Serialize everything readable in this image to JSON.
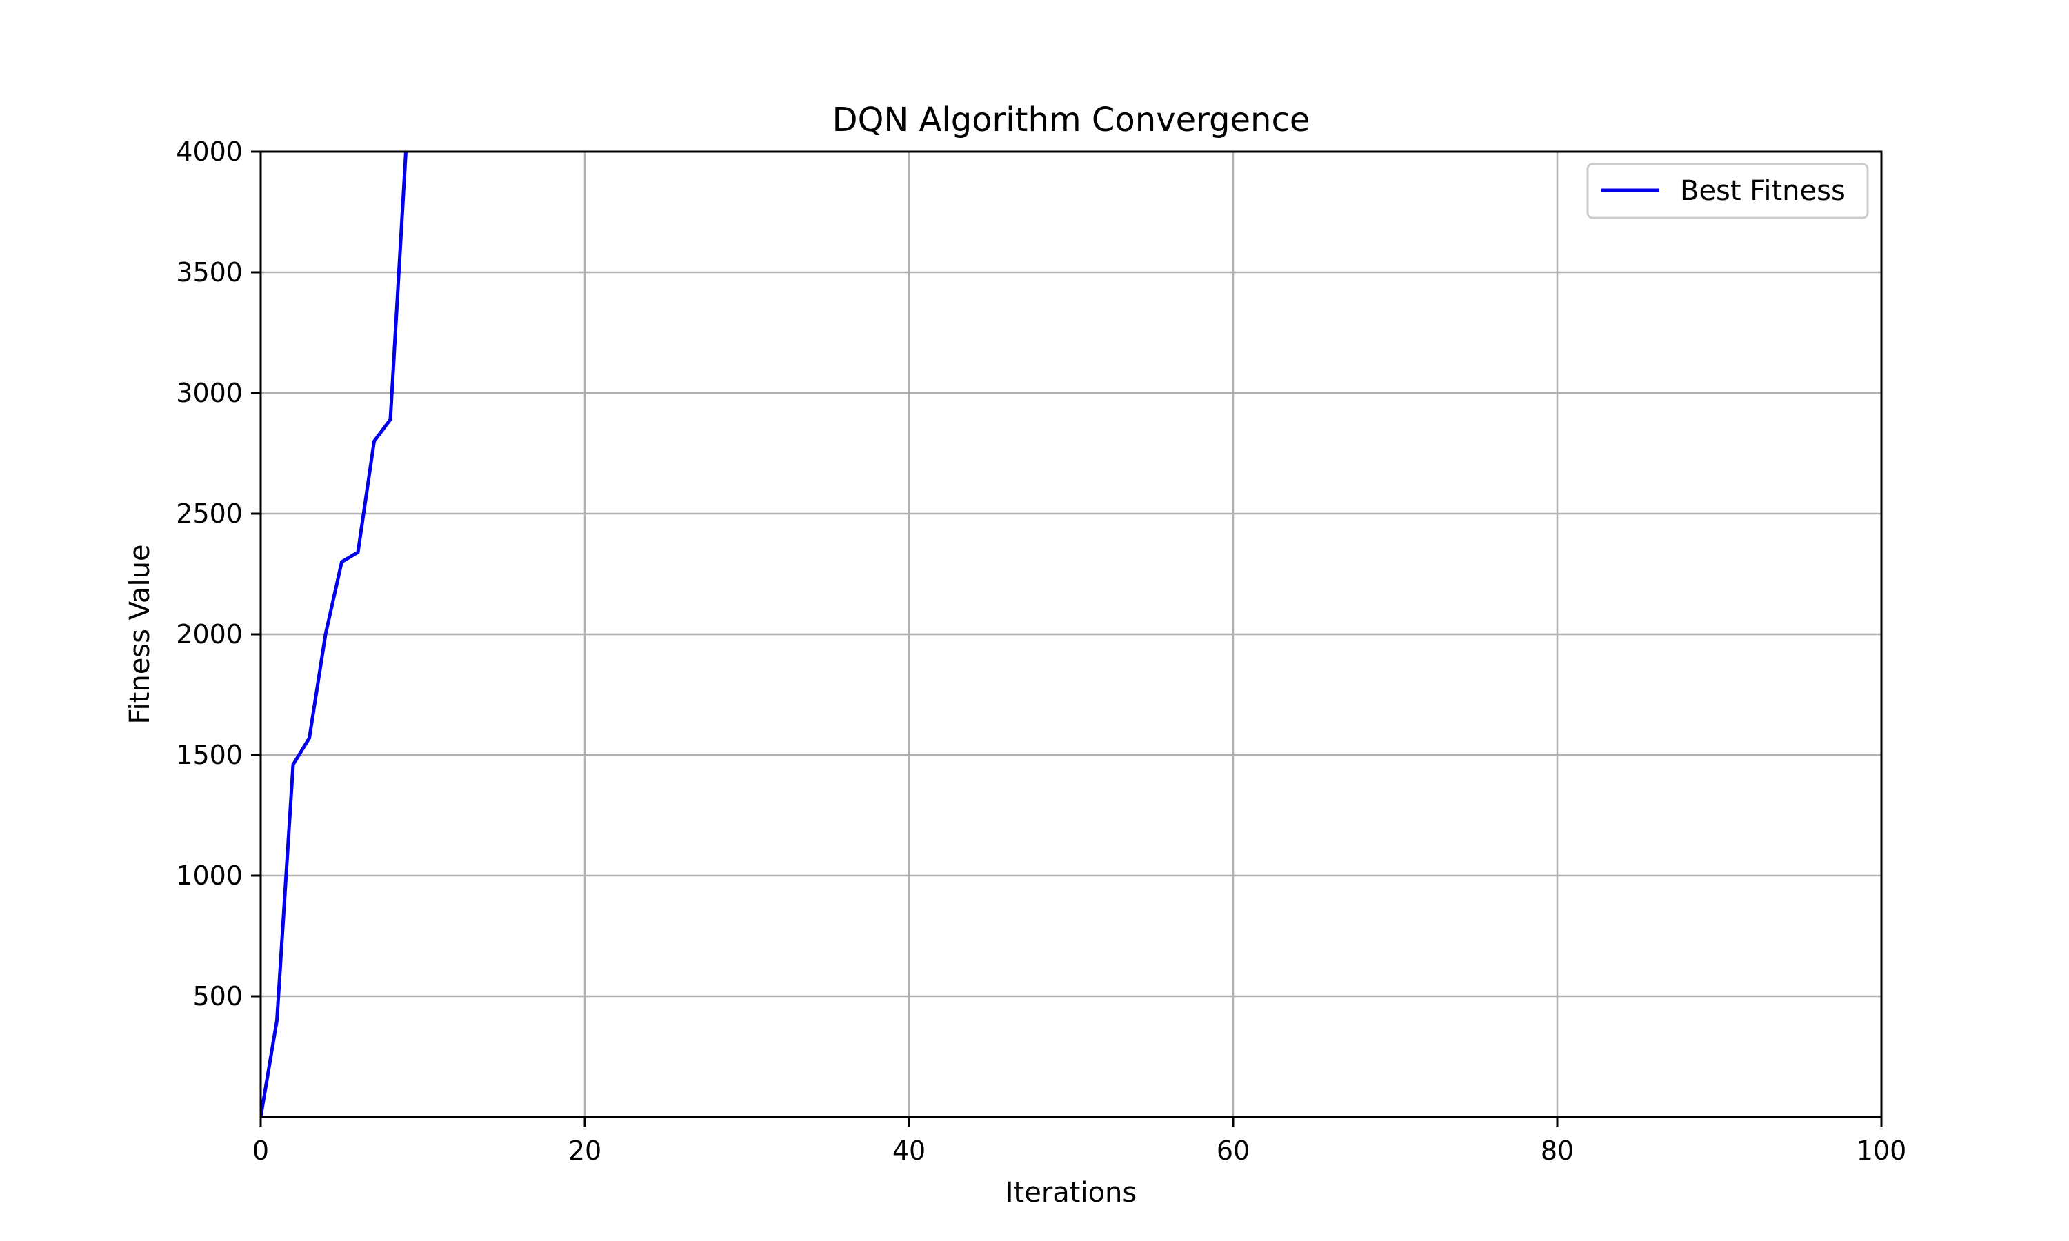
{
  "chart_data": {
    "type": "line",
    "title": "DQN Algorithm Convergence",
    "xlabel": "Iterations",
    "ylabel": "Fitness Value",
    "xlim": [
      0,
      100
    ],
    "ylim": [
      0,
      4000
    ],
    "xticks": [
      0,
      20,
      40,
      60,
      80,
      100
    ],
    "yticks": [
      500,
      1000,
      1500,
      2000,
      2500,
      3000,
      3500,
      4000
    ],
    "grid": true,
    "legend_position": "top-right",
    "series": [
      {
        "name": "Best Fitness",
        "color": "#0000ee",
        "x": [
          0,
          1,
          2,
          3,
          4,
          5,
          6,
          7,
          8,
          9
        ],
        "y": [
          0,
          400,
          1460,
          1570,
          2000,
          2300,
          2340,
          2800,
          2890,
          4050
        ]
      }
    ]
  }
}
